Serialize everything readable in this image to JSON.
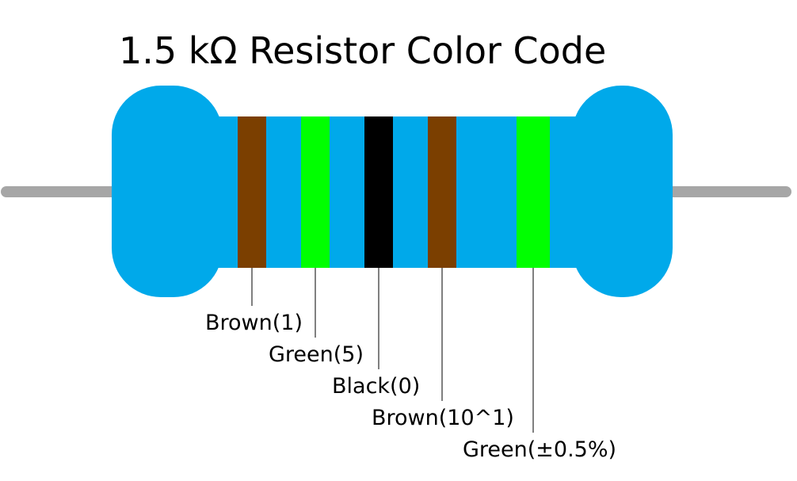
{
  "title": "1.5 kΩ Resistor Color Code",
  "colors": {
    "body": "#00a9ea",
    "lead": "#a6a6a6",
    "leader_line": "#000000"
  },
  "bands": [
    {
      "label": "Brown(1)",
      "color": "#7b3f00"
    },
    {
      "label": "Green(5)",
      "color": "#00ff00"
    },
    {
      "label": "Black(0)",
      "color": "#000000"
    },
    {
      "label": "Brown(10^1)",
      "color": "#7b3f00"
    },
    {
      "label": "Green(±0.5%)",
      "color": "#00ff00"
    }
  ]
}
